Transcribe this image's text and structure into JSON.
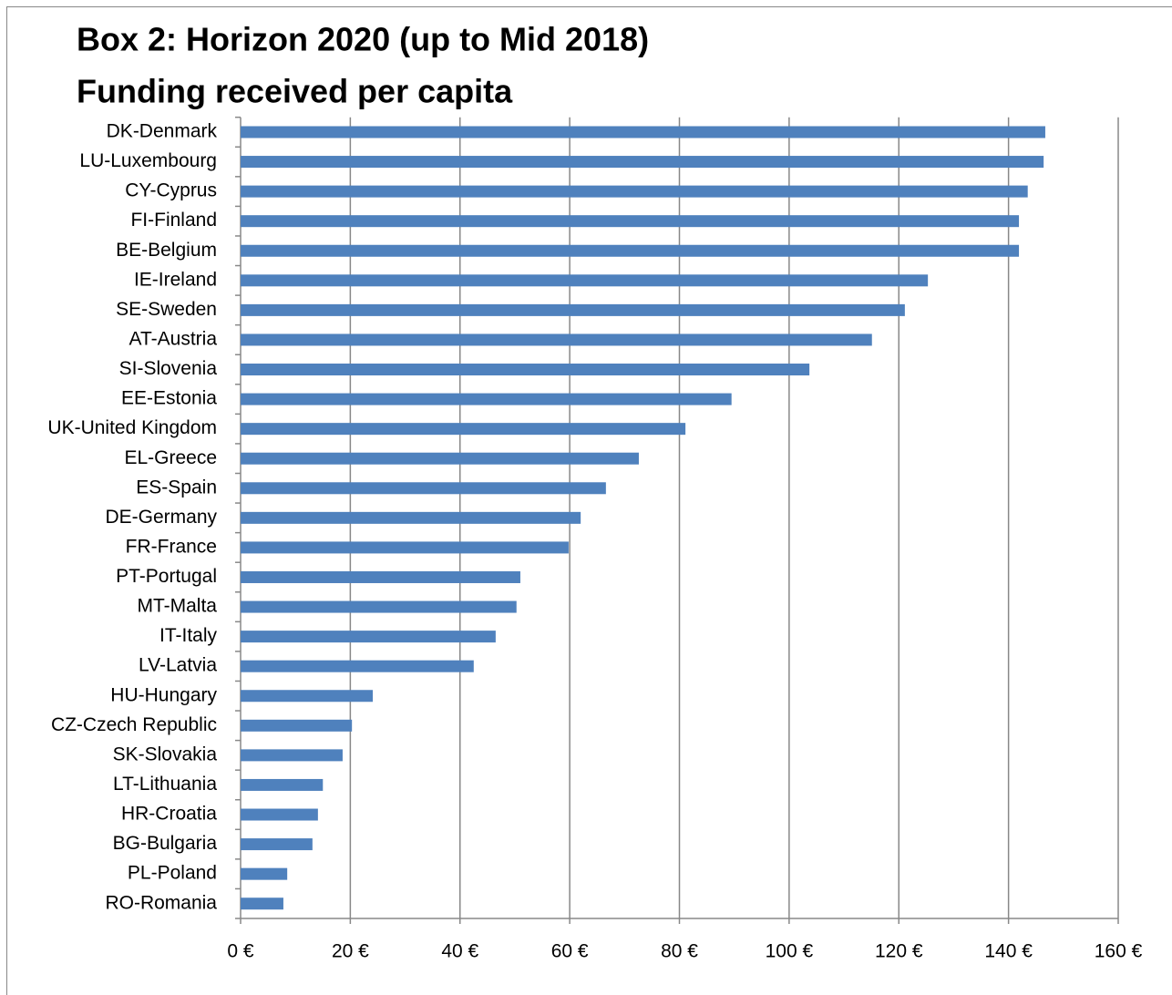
{
  "chart_data": {
    "type": "bar",
    "orientation": "horizontal",
    "title": "Box 2: Horizon 2020 (up to Mid 2018)",
    "subtitle": "Funding received per capita",
    "categories": [
      "DK-Denmark",
      "LU-Luxembourg",
      "CY-Cyprus",
      "FI-Finland",
      "BE-Belgium",
      "IE-Ireland",
      "SE-Sweden",
      "AT-Austria",
      "SI-Slovenia",
      "EE-Estonia",
      "UK-United Kingdom",
      "EL-Greece",
      "ES-Spain",
      "DE-Germany",
      "FR-France",
      "PT-Portugal",
      "MT-Malta",
      "IT-Italy",
      "LV-Latvia",
      "HU-Hungary",
      "CZ-Czech Republic",
      "SK-Slovakia",
      "LT-Lithuania",
      "HR-Croatia",
      "BG-Bulgaria",
      "PL-Poland",
      "RO-Romania"
    ],
    "values": [
      146.7,
      146.4,
      143.5,
      141.9,
      141.9,
      125.3,
      121.1,
      115.1,
      103.7,
      89.5,
      81.1,
      72.6,
      66.6,
      62.0,
      59.8,
      51.0,
      50.3,
      46.5,
      42.5,
      24.1,
      20.3,
      18.6,
      15.0,
      14.1,
      13.1,
      8.5,
      7.8
    ],
    "color": "#4f81bd",
    "xlim": [
      0,
      160
    ],
    "xticks": [
      {
        "value": 0,
        "label": "0 €"
      },
      {
        "value": 20,
        "label": "20 €"
      },
      {
        "value": 40,
        "label": "40 €"
      },
      {
        "value": 60,
        "label": "60 €"
      },
      {
        "value": 80,
        "label": "80 €"
      },
      {
        "value": 100,
        "label": "100 €"
      },
      {
        "value": 120,
        "label": "120 €"
      },
      {
        "value": 140,
        "label": "140 €"
      },
      {
        "value": 160,
        "label": "160 €"
      }
    ],
    "grid": true
  }
}
